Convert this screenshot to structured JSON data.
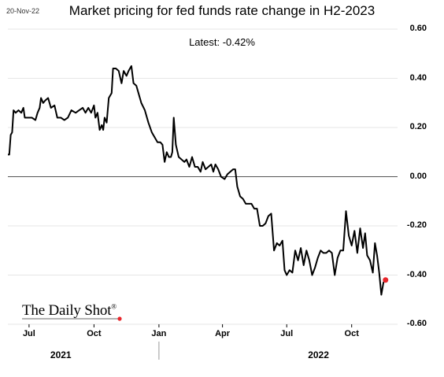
{
  "header": {
    "date": "20-Nov-22",
    "title": "Market pricing for fed funds rate change in H2-2023",
    "latest_label": "Latest:",
    "latest_value": "-0.42%"
  },
  "brand": {
    "name": "The Daily Shot",
    "mark": "®",
    "accent": "#e8262b"
  },
  "chart_data": {
    "type": "line",
    "title": "Market pricing for fed funds rate change in H2-2023",
    "xlabel": "",
    "ylabel": "",
    "ylim": [
      -0.6,
      0.6
    ],
    "yticks": [
      0.6,
      0.4,
      0.2,
      0.0,
      -0.2,
      -0.4,
      -0.6
    ],
    "ytick_labels": [
      "0.60",
      "0.40",
      "0.20",
      "0.00",
      "-0.20",
      "-0.40",
      "-0.60"
    ],
    "xlim": [
      "2021-06-01",
      "2022-12-05"
    ],
    "xticks": [
      {
        "label": "Jul",
        "date": "2021-07-01"
      },
      {
        "label": "Oct",
        "date": "2021-10-01"
      },
      {
        "label": "Jan",
        "date": "2022-01-01"
      },
      {
        "label": "Apr",
        "date": "2022-04-01"
      },
      {
        "label": "Jul",
        "date": "2022-07-01"
      },
      {
        "label": "Oct",
        "date": "2022-10-01"
      }
    ],
    "year_labels": [
      {
        "label": "2021",
        "date": "2021-08-15"
      },
      {
        "label": "2022",
        "date": "2022-08-15"
      }
    ],
    "zero_line": true,
    "line_color": "#000000",
    "end_marker_color": "#e8262b",
    "series": [
      {
        "name": "",
        "points": [
          [
            "2021-06-01",
            0.09
          ],
          [
            "2021-06-03",
            0.09
          ],
          [
            "2021-06-05",
            0.17
          ],
          [
            "2021-06-07",
            0.18
          ],
          [
            "2021-06-09",
            0.27
          ],
          [
            "2021-06-12",
            0.26
          ],
          [
            "2021-06-16",
            0.27
          ],
          [
            "2021-06-20",
            0.26
          ],
          [
            "2021-06-23",
            0.28
          ],
          [
            "2021-06-25",
            0.24
          ],
          [
            "2021-06-28",
            0.24
          ],
          [
            "2021-07-05",
            0.24
          ],
          [
            "2021-07-10",
            0.23
          ],
          [
            "2021-07-13",
            0.26
          ],
          [
            "2021-07-16",
            0.28
          ],
          [
            "2021-07-18",
            0.32
          ],
          [
            "2021-07-21",
            0.3
          ],
          [
            "2021-07-24",
            0.31
          ],
          [
            "2021-07-28",
            0.32
          ],
          [
            "2021-08-01",
            0.28
          ],
          [
            "2021-08-06",
            0.29
          ],
          [
            "2021-08-10",
            0.24
          ],
          [
            "2021-08-15",
            0.24
          ],
          [
            "2021-08-20",
            0.23
          ],
          [
            "2021-08-25",
            0.24
          ],
          [
            "2021-08-30",
            0.27
          ],
          [
            "2021-09-05",
            0.26
          ],
          [
            "2021-09-10",
            0.27
          ],
          [
            "2021-09-15",
            0.28
          ],
          [
            "2021-09-19",
            0.26
          ],
          [
            "2021-09-23",
            0.28
          ],
          [
            "2021-09-27",
            0.26
          ],
          [
            "2021-10-01",
            0.29
          ],
          [
            "2021-10-03",
            0.24
          ],
          [
            "2021-10-06",
            0.26
          ],
          [
            "2021-10-09",
            0.19
          ],
          [
            "2021-10-12",
            0.21
          ],
          [
            "2021-10-14",
            0.19
          ],
          [
            "2021-10-16",
            0.24
          ],
          [
            "2021-10-19",
            0.22
          ],
          [
            "2021-10-22",
            0.32
          ],
          [
            "2021-10-26",
            0.34
          ],
          [
            "2021-10-28",
            0.44
          ],
          [
            "2021-11-01",
            0.44
          ],
          [
            "2021-11-05",
            0.43
          ],
          [
            "2021-11-09",
            0.38
          ],
          [
            "2021-11-12",
            0.43
          ],
          [
            "2021-11-16",
            0.41
          ],
          [
            "2021-11-19",
            0.43
          ],
          [
            "2021-11-23",
            0.45
          ],
          [
            "2021-11-26",
            0.38
          ],
          [
            "2021-11-30",
            0.37
          ],
          [
            "2021-12-03",
            0.34
          ],
          [
            "2021-12-07",
            0.3
          ],
          [
            "2021-12-12",
            0.27
          ],
          [
            "2021-12-17",
            0.22
          ],
          [
            "2021-12-22",
            0.18
          ],
          [
            "2021-12-26",
            0.16
          ],
          [
            "2021-12-30",
            0.14
          ],
          [
            "2022-01-03",
            0.14
          ],
          [
            "2022-01-06",
            0.13
          ],
          [
            "2022-01-09",
            0.06
          ],
          [
            "2022-01-12",
            0.1
          ],
          [
            "2022-01-15",
            0.08
          ],
          [
            "2022-01-18",
            0.08
          ],
          [
            "2022-01-20",
            0.1
          ],
          [
            "2022-01-22",
            0.24
          ],
          [
            "2022-01-25",
            0.13
          ],
          [
            "2022-01-29",
            0.08
          ],
          [
            "2022-02-02",
            0.07
          ],
          [
            "2022-02-06",
            0.06
          ],
          [
            "2022-02-09",
            0.07
          ],
          [
            "2022-02-13",
            0.04
          ],
          [
            "2022-02-17",
            0.08
          ],
          [
            "2022-02-21",
            0.04
          ],
          [
            "2022-02-25",
            0.04
          ],
          [
            "2022-03-01",
            0.02
          ],
          [
            "2022-03-04",
            0.06
          ],
          [
            "2022-03-08",
            0.03
          ],
          [
            "2022-03-12",
            0.04
          ],
          [
            "2022-03-16",
            0.05
          ],
          [
            "2022-03-19",
            0.02
          ],
          [
            "2022-03-22",
            0.05
          ],
          [
            "2022-03-26",
            0.03
          ],
          [
            "2022-03-30",
            0.0
          ],
          [
            "2022-04-04",
            -0.01
          ],
          [
            "2022-04-08",
            0.01
          ],
          [
            "2022-04-12",
            0.02
          ],
          [
            "2022-04-16",
            0.03
          ],
          [
            "2022-04-19",
            0.03
          ],
          [
            "2022-04-22",
            -0.04
          ],
          [
            "2022-04-26",
            -0.08
          ],
          [
            "2022-04-30",
            -0.09
          ],
          [
            "2022-05-04",
            -0.11
          ],
          [
            "2022-05-08",
            -0.11
          ],
          [
            "2022-05-12",
            -0.11
          ],
          [
            "2022-05-16",
            -0.13
          ],
          [
            "2022-05-20",
            -0.13
          ],
          [
            "2022-05-24",
            -0.2
          ],
          [
            "2022-05-28",
            -0.2
          ],
          [
            "2022-06-01",
            -0.19
          ],
          [
            "2022-06-05",
            -0.16
          ],
          [
            "2022-06-09",
            -0.15
          ],
          [
            "2022-06-13",
            -0.3
          ],
          [
            "2022-06-17",
            -0.27
          ],
          [
            "2022-06-21",
            -0.28
          ],
          [
            "2022-06-25",
            -0.26
          ],
          [
            "2022-06-28",
            -0.38
          ],
          [
            "2022-07-01",
            -0.4
          ],
          [
            "2022-07-05",
            -0.38
          ],
          [
            "2022-07-09",
            -0.39
          ],
          [
            "2022-07-13",
            -0.3
          ],
          [
            "2022-07-17",
            -0.34
          ],
          [
            "2022-07-21",
            -0.29
          ],
          [
            "2022-07-25",
            -0.36
          ],
          [
            "2022-07-29",
            -0.3
          ],
          [
            "2022-08-02",
            -0.34
          ],
          [
            "2022-08-06",
            -0.4
          ],
          [
            "2022-08-10",
            -0.37
          ],
          [
            "2022-08-14",
            -0.33
          ],
          [
            "2022-08-18",
            -0.3
          ],
          [
            "2022-08-22",
            -0.31
          ],
          [
            "2022-08-26",
            -0.31
          ],
          [
            "2022-08-30",
            -0.3
          ],
          [
            "2022-09-03",
            -0.31
          ],
          [
            "2022-09-07",
            -0.4
          ],
          [
            "2022-09-11",
            -0.33
          ],
          [
            "2022-09-15",
            -0.3
          ],
          [
            "2022-09-19",
            -0.3
          ],
          [
            "2022-09-23",
            -0.14
          ],
          [
            "2022-09-27",
            -0.24
          ],
          [
            "2022-10-01",
            -0.28
          ],
          [
            "2022-10-05",
            -0.22
          ],
          [
            "2022-10-09",
            -0.31
          ],
          [
            "2022-10-13",
            -0.21
          ],
          [
            "2022-10-17",
            -0.29
          ],
          [
            "2022-10-20",
            -0.23
          ],
          [
            "2022-10-23",
            -0.32
          ],
          [
            "2022-10-27",
            -0.34
          ],
          [
            "2022-10-31",
            -0.39
          ],
          [
            "2022-11-03",
            -0.27
          ],
          [
            "2022-11-06",
            -0.32
          ],
          [
            "2022-11-09",
            -0.39
          ],
          [
            "2022-11-12",
            -0.48
          ],
          [
            "2022-11-15",
            -0.43
          ],
          [
            "2022-11-18",
            -0.42
          ]
        ]
      }
    ]
  }
}
